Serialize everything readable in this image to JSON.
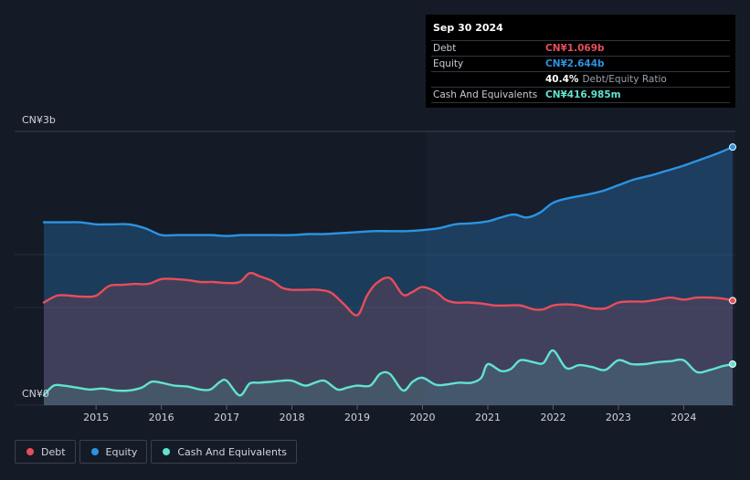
{
  "tooltip": {
    "date": "Sep 30 2024",
    "debt_label": "Debt",
    "debt_value": "CN¥1.069b",
    "equity_label": "Equity",
    "equity_value": "CN¥2.644b",
    "ratio_value": "40.4%",
    "ratio_label": "Debt/Equity Ratio",
    "cash_label": "Cash And Equivalents",
    "cash_value": "CN¥416.985m"
  },
  "legend": {
    "debt": "Debt",
    "equity": "Equity",
    "cash": "Cash And Equivalents"
  },
  "colors": {
    "debt": "#e84d5b",
    "equity": "#2b94e3",
    "cash": "#61e3cf",
    "background": "#151b26",
    "highlight": "#181e2b"
  },
  "chart_data": {
    "type": "area",
    "ylim": [
      0,
      2.8
    ],
    "ytick_labels": [
      "CN¥0",
      "CN¥3b"
    ],
    "xtick_labels": [
      "2015",
      "2016",
      "2017",
      "2018",
      "2019",
      "2020",
      "2021",
      "2022",
      "2023",
      "2024"
    ],
    "xtick_years": [
      2015,
      2016,
      2017,
      2018,
      2019,
      2020,
      2021,
      2022,
      2023,
      2024
    ],
    "x_range": [
      2014.2,
      2024.75
    ],
    "legend_position": "bottom-left",
    "series": [
      {
        "name": "Equity",
        "x": [
          2014.2,
          2014.5,
          2014.75,
          2015.0,
          2015.25,
          2015.5,
          2015.75,
          2016.0,
          2016.25,
          2016.5,
          2016.75,
          2017.0,
          2017.25,
          2017.5,
          2017.75,
          2018.0,
          2018.25,
          2018.5,
          2018.75,
          2019.0,
          2019.25,
          2019.5,
          2019.75,
          2020.0,
          2020.25,
          2020.5,
          2020.75,
          2021.0,
          2021.2,
          2021.4,
          2021.6,
          2021.8,
          2022.0,
          2022.25,
          2022.5,
          2022.75,
          2023.0,
          2023.25,
          2023.5,
          2023.75,
          2024.0,
          2024.25,
          2024.5,
          2024.75
        ],
        "values": [
          1.87,
          1.87,
          1.87,
          1.85,
          1.85,
          1.85,
          1.81,
          1.74,
          1.74,
          1.74,
          1.74,
          1.73,
          1.74,
          1.74,
          1.74,
          1.74,
          1.75,
          1.75,
          1.76,
          1.77,
          1.78,
          1.78,
          1.78,
          1.79,
          1.81,
          1.85,
          1.86,
          1.88,
          1.92,
          1.95,
          1.92,
          1.97,
          2.07,
          2.12,
          2.15,
          2.19,
          2.25,
          2.31,
          2.35,
          2.4,
          2.45,
          2.51,
          2.57,
          2.64
        ]
      },
      {
        "name": "Debt",
        "x": [
          2014.2,
          2014.4,
          2014.6,
          2014.8,
          2015.0,
          2015.2,
          2015.4,
          2015.6,
          2015.8,
          2016.0,
          2016.2,
          2016.4,
          2016.6,
          2016.8,
          2017.0,
          2017.2,
          2017.35,
          2017.5,
          2017.7,
          2017.85,
          2018.0,
          2018.2,
          2018.4,
          2018.6,
          2018.8,
          2019.0,
          2019.15,
          2019.3,
          2019.5,
          2019.7,
          2019.85,
          2020.0,
          2020.2,
          2020.35,
          2020.5,
          2020.7,
          2020.9,
          2021.1,
          2021.3,
          2021.5,
          2021.7,
          2021.85,
          2022.0,
          2022.2,
          2022.4,
          2022.6,
          2022.8,
          2023.0,
          2023.2,
          2023.4,
          2023.6,
          2023.8,
          2024.0,
          2024.2,
          2024.4,
          2024.6,
          2024.75
        ],
        "values": [
          1.05,
          1.12,
          1.12,
          1.11,
          1.12,
          1.22,
          1.23,
          1.24,
          1.24,
          1.29,
          1.29,
          1.28,
          1.26,
          1.26,
          1.25,
          1.26,
          1.35,
          1.32,
          1.27,
          1.2,
          1.18,
          1.18,
          1.18,
          1.15,
          1.03,
          0.92,
          1.12,
          1.25,
          1.3,
          1.13,
          1.16,
          1.21,
          1.16,
          1.08,
          1.05,
          1.05,
          1.04,
          1.02,
          1.02,
          1.02,
          0.98,
          0.98,
          1.02,
          1.03,
          1.02,
          0.99,
          0.99,
          1.05,
          1.06,
          1.06,
          1.08,
          1.1,
          1.08,
          1.1,
          1.1,
          1.09,
          1.07
        ]
      },
      {
        "name": "Cash And Equivalents",
        "x": [
          2014.2,
          2014.35,
          2014.5,
          2014.7,
          2014.9,
          2015.1,
          2015.3,
          2015.5,
          2015.7,
          2015.85,
          2016.0,
          2016.2,
          2016.4,
          2016.6,
          2016.75,
          2016.9,
          2017.0,
          2017.2,
          2017.35,
          2017.5,
          2017.7,
          2017.85,
          2018.0,
          2018.2,
          2018.35,
          2018.5,
          2018.7,
          2018.85,
          2019.0,
          2019.2,
          2019.35,
          2019.5,
          2019.7,
          2019.85,
          2020.0,
          2020.2,
          2020.35,
          2020.55,
          2020.75,
          2020.9,
          2021.0,
          2021.2,
          2021.35,
          2021.5,
          2021.7,
          2021.85,
          2022.0,
          2022.2,
          2022.4,
          2022.6,
          2022.8,
          2023.0,
          2023.2,
          2023.4,
          2023.6,
          2023.8,
          2024.0,
          2024.2,
          2024.4,
          2024.6,
          2024.75
        ],
        "values": [
          0.1,
          0.2,
          0.2,
          0.18,
          0.16,
          0.17,
          0.15,
          0.15,
          0.18,
          0.24,
          0.23,
          0.2,
          0.19,
          0.16,
          0.16,
          0.24,
          0.25,
          0.1,
          0.22,
          0.23,
          0.24,
          0.25,
          0.25,
          0.2,
          0.23,
          0.25,
          0.16,
          0.18,
          0.2,
          0.2,
          0.32,
          0.32,
          0.15,
          0.24,
          0.28,
          0.21,
          0.21,
          0.23,
          0.23,
          0.28,
          0.42,
          0.35,
          0.37,
          0.46,
          0.44,
          0.43,
          0.56,
          0.38,
          0.41,
          0.39,
          0.36,
          0.46,
          0.42,
          0.42,
          0.44,
          0.45,
          0.46,
          0.34,
          0.36,
          0.4,
          0.42
        ]
      }
    ]
  }
}
